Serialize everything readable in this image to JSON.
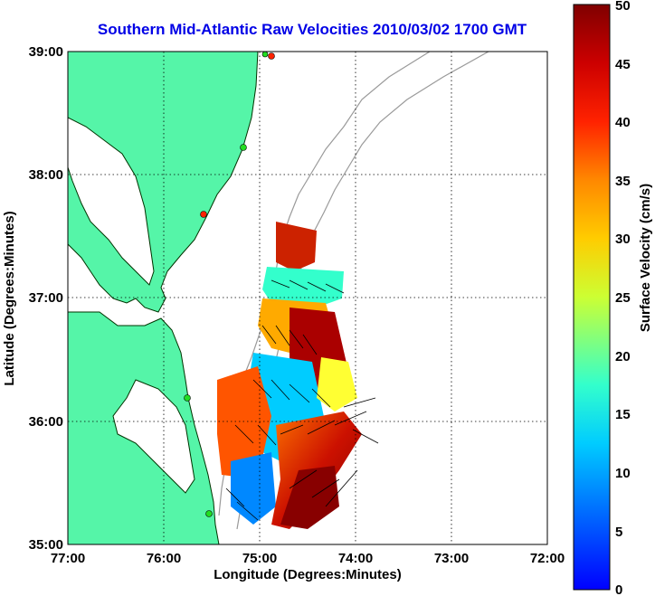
{
  "title": "Southern Mid-Atlantic Raw Velocities 2010/03/02 1700 GMT",
  "map": {
    "xlabel": "Longitude (Degrees:Minutes)",
    "ylabel": "Latitude (Degrees:Minutes)",
    "x_ticks": [
      "77:00",
      "76:00",
      "75:00",
      "74:00",
      "73:00",
      "72:00"
    ],
    "y_ticks": [
      "39:00",
      "38:00",
      "37:00",
      "36:00",
      "35:00"
    ],
    "lon_range": [
      -77,
      -72
    ],
    "lat_range": [
      35,
      39
    ],
    "grid": true,
    "land_color": "#55f5a8",
    "coast_color": "#003300",
    "bathymetry_color": "#9a9a9a",
    "station_colors": {
      "active": "#22dd22",
      "inactive": "#ff2200"
    }
  },
  "colorbar": {
    "label": "Surface Velocity (cm/s)",
    "min": 0,
    "max": 50,
    "ticks": [
      "0",
      "5",
      "10",
      "15",
      "20",
      "25",
      "30",
      "35",
      "40",
      "45",
      "50"
    ],
    "colormap": [
      "#0000ff",
      "#00aaff",
      "#00ffff",
      "#66ff99",
      "#ffff00",
      "#ffaa00",
      "#ff4400",
      "#cc0000",
      "#800000"
    ]
  }
}
